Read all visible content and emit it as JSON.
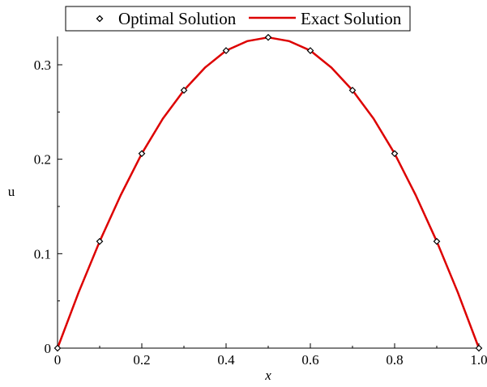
{
  "chart_data": {
    "type": "line",
    "xlabel": "x",
    "ylabel": "u",
    "xlim": [
      0,
      1.0
    ],
    "ylim": [
      0,
      0.33
    ],
    "x_ticks": [
      "0",
      "0.2",
      "0.4",
      "0.6",
      "0.8",
      "1.0"
    ],
    "y_ticks": [
      "0",
      "0.1",
      "0.2",
      "0.3"
    ],
    "grid": false,
    "legend_position": "top",
    "series": [
      {
        "name": "Optimal Solution",
        "kind": "scatter",
        "marker": "diamond",
        "color": "#000000",
        "x": [
          0,
          0.1,
          0.2,
          0.3,
          0.4,
          0.5,
          0.6,
          0.7,
          0.8,
          0.9,
          1.0
        ],
        "y": [
          0,
          0.113,
          0.206,
          0.273,
          0.315,
          0.329,
          0.315,
          0.273,
          0.206,
          0.113,
          0
        ]
      },
      {
        "name": "Exact Solution",
        "kind": "line",
        "color": "#dd0000",
        "x": [
          0,
          0.05,
          0.1,
          0.15,
          0.2,
          0.25,
          0.3,
          0.35,
          0.4,
          0.45,
          0.5,
          0.55,
          0.6,
          0.65,
          0.7,
          0.75,
          0.8,
          0.85,
          0.9,
          0.95,
          1.0
        ],
        "y": [
          0,
          0.059,
          0.113,
          0.162,
          0.206,
          0.243,
          0.273,
          0.297,
          0.315,
          0.325,
          0.329,
          0.325,
          0.315,
          0.297,
          0.273,
          0.243,
          0.206,
          0.162,
          0.113,
          0.059,
          0
        ]
      }
    ]
  }
}
